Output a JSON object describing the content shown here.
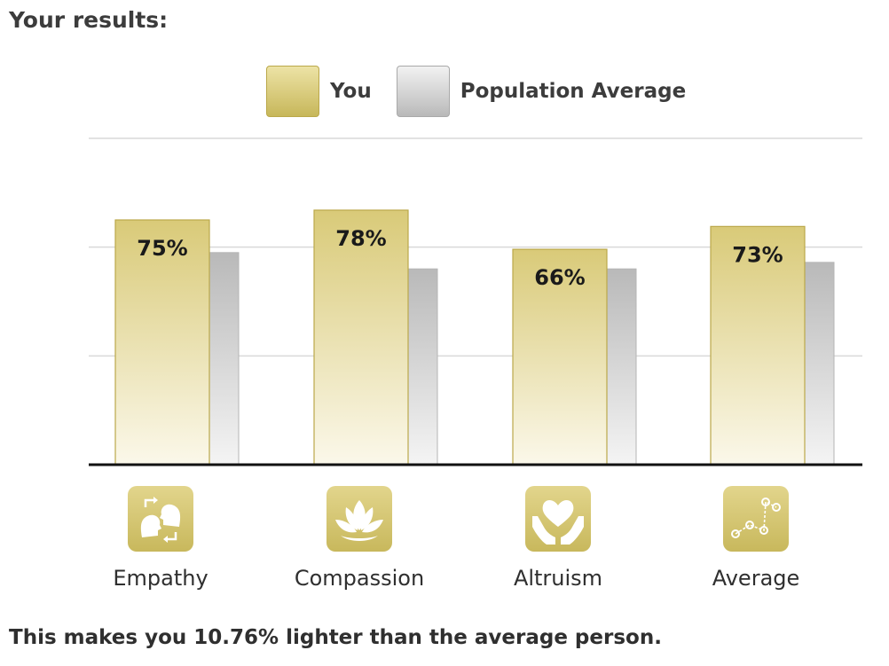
{
  "title": "Your results:",
  "legend": {
    "you": "You",
    "population": "Population Average"
  },
  "colors": {
    "you_top": "#ede3a6",
    "you_bottom": "#c7b75a",
    "you_edge": "#bba84a",
    "population_top": "#f2f2f2",
    "population_bottom": "#b9b9b9",
    "grid": "#d9d9d9",
    "axis": "#111111",
    "icon_bg": "#d3c46b"
  },
  "chart_data": {
    "type": "bar",
    "categories": [
      "Empathy",
      "Compassion",
      "Altruism",
      "Average"
    ],
    "icons": [
      "faces-exchange-icon",
      "lotus-icon",
      "heart-in-hands-icon",
      "constellation-icon"
    ],
    "series": [
      {
        "name": "You",
        "values": [
          75,
          78,
          66,
          73
        ]
      },
      {
        "name": "Population Average",
        "values": [
          65,
          60,
          60,
          62
        ]
      }
    ],
    "data_labels": [
      "75%",
      "78%",
      "66%",
      "73%"
    ],
    "ylim": [
      0,
      100
    ],
    "grid": true,
    "legend_position": "top-center",
    "xlabel": "",
    "ylabel": ""
  },
  "footer": "This makes you 10.76% lighter than the average person."
}
